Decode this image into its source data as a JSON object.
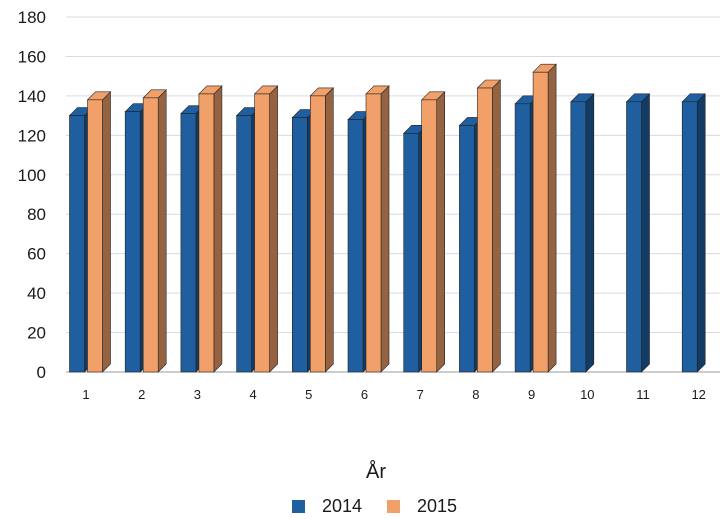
{
  "chart_data": {
    "type": "bar",
    "categories": [
      "1",
      "2",
      "3",
      "4",
      "5",
      "6",
      "7",
      "8",
      "9",
      "10",
      "11",
      "12"
    ],
    "series": [
      {
        "name": "2014",
        "color": "#1f5fa0",
        "values": [
          130,
          132,
          131,
          130,
          129,
          128,
          121,
          125,
          136,
          137,
          137,
          137
        ]
      },
      {
        "name": "2015",
        "color": "#f2a06a",
        "values": [
          138,
          139,
          141,
          141,
          140,
          141,
          138,
          144,
          152,
          null,
          null,
          null
        ]
      }
    ],
    "title": "",
    "xlabel": "År",
    "ylabel": "",
    "ylim": [
      0,
      180
    ],
    "yticks": [
      0,
      20,
      40,
      60,
      80,
      100,
      120,
      140,
      160,
      180
    ],
    "grid": true,
    "legend": "bottom",
    "style": "3d-bar"
  }
}
